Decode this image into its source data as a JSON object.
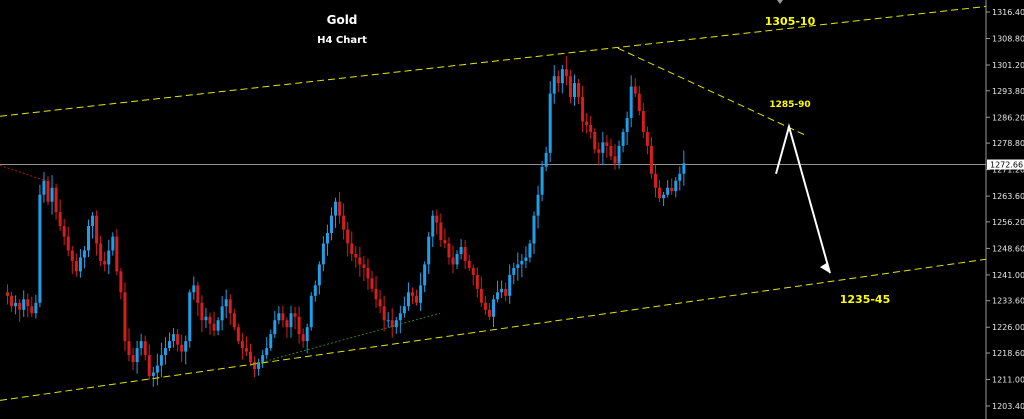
{
  "chart_data": {
    "type": "candlestick",
    "title": "Gold",
    "subtitle": "H4 Chart",
    "y_axis": {
      "ticks": [
        "1316.40",
        "1308.80",
        "1301.20",
        "1293.80",
        "1286.20",
        "1278.80",
        "1271.20",
        "1263.60",
        "1256.20",
        "1248.60",
        "1241.00",
        "1233.60",
        "1226.00",
        "1218.60",
        "1211.00",
        "1203.40"
      ],
      "range": [
        1200.9,
        1318.0
      ]
    },
    "current_price": "1272.66",
    "annotations": [
      {
        "label": "1305-10",
        "type": "target-zone"
      },
      {
        "label": "1285-90",
        "type": "resistance"
      },
      {
        "label": "1235-45",
        "type": "target-zone"
      }
    ],
    "channel": {
      "upper": {
        "from_price": 1286.5,
        "to_price": 1318.0
      },
      "lower": {
        "from_price": 1205.0,
        "to_price": 1245.5
      }
    },
    "closes": [
      1235,
      1232,
      1233,
      1231,
      1234,
      1232,
      1230,
      1233,
      1264,
      1268,
      1262,
      1266,
      1259,
      1255,
      1252,
      1248,
      1245,
      1242,
      1246,
      1248,
      1255,
      1258,
      1250,
      1245,
      1244,
      1248,
      1252,
      1242,
      1236,
      1222,
      1218,
      1216,
      1220,
      1222,
      1218,
      1212,
      1213,
      1215,
      1218,
      1220,
      1222,
      1224,
      1221,
      1219,
      1222,
      1236,
      1238,
      1233,
      1228,
      1229,
      1227,
      1225,
      1228,
      1232,
      1234,
      1230,
      1226,
      1222,
      1220,
      1219,
      1216,
      1214,
      1216,
      1218,
      1220,
      1224,
      1228,
      1230,
      1228,
      1226,
      1230,
      1229,
      1224,
      1222,
      1226,
      1235,
      1238,
      1244,
      1250,
      1253,
      1258,
      1262,
      1258,
      1254,
      1250,
      1247,
      1246,
      1244,
      1243,
      1240,
      1237,
      1234,
      1232,
      1228,
      1228,
      1226,
      1228,
      1230,
      1232,
      1236,
      1235,
      1233,
      1238,
      1244,
      1252,
      1258,
      1256,
      1251,
      1250,
      1246,
      1244,
      1247,
      1249,
      1245,
      1243,
      1241,
      1237,
      1233,
      1231,
      1229,
      1234,
      1236,
      1237,
      1235,
      1241,
      1243,
      1244,
      1245,
      1246,
      1250,
      1258,
      1264,
      1272,
      1276,
      1293,
      1298,
      1296,
      1300,
      1298,
      1292,
      1296,
      1292,
      1285,
      1284,
      1282,
      1277,
      1276,
      1279,
      1278,
      1275,
      1273,
      1278,
      1282,
      1286,
      1295,
      1293,
      1288,
      1282,
      1278,
      1270,
      1266,
      1263,
      1264,
      1266,
      1265,
      1268,
      1270,
      1273
    ],
    "drawings": [
      {
        "type": "trendline",
        "note": "upper channel"
      },
      {
        "type": "trendline",
        "note": "lower channel"
      },
      {
        "type": "trendline",
        "note": "descending resistance"
      },
      {
        "type": "arrow",
        "note": "projected path up then down"
      }
    ],
    "colors": {
      "background": "#000000",
      "bull": "#1e9fe8",
      "bear": "#d61e1e",
      "channel": "#e8e400",
      "annotation": "#ffff00",
      "price_line": "#bfbfbf",
      "arrow": "#ffffff"
    }
  }
}
